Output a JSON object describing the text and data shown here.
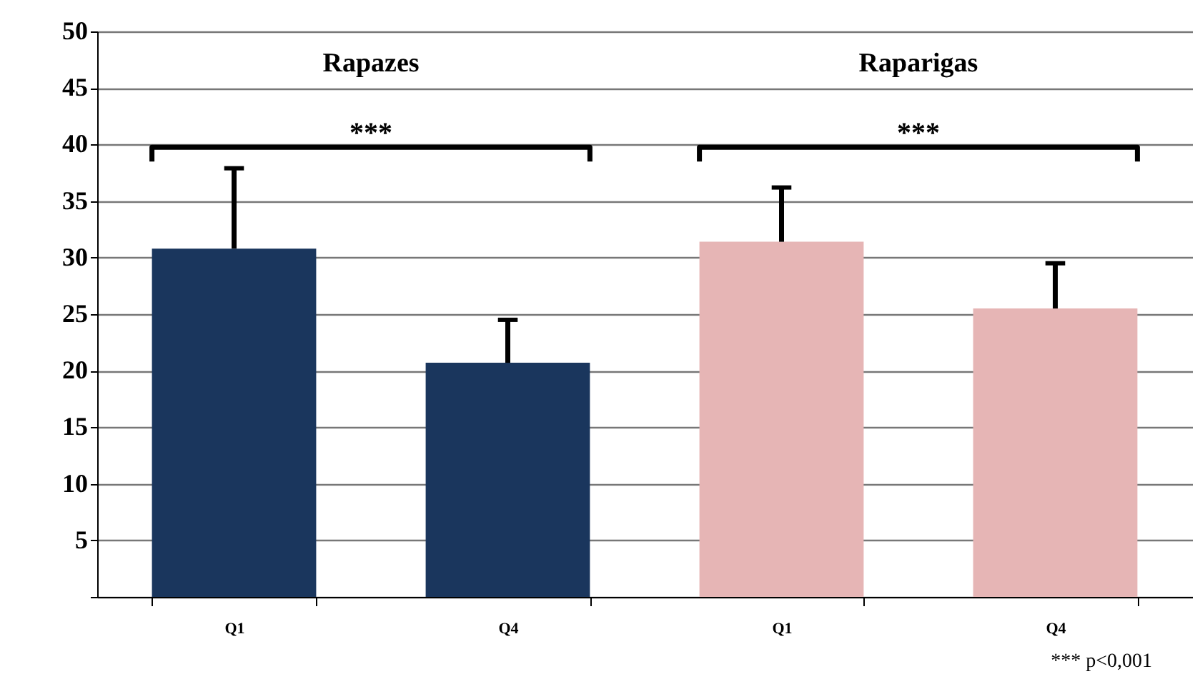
{
  "chart_data": {
    "type": "bar",
    "categories": [
      "Q1",
      "Q4",
      "Q1",
      "Q4"
    ],
    "values": [
      30.8,
      20.7,
      31.4,
      25.5
    ],
    "colors": [
      "#1a365d",
      "#1a365d",
      "#e6b5b5",
      "#e6b5b5"
    ],
    "errors": [
      [
        30.8,
        37.9
      ],
      [
        20.7,
        24.5
      ],
      [
        31.4,
        36.2
      ],
      [
        25.5,
        29.5
      ]
    ],
    "ylim": [
      0,
      50
    ],
    "yticks": [
      {
        "value": 0,
        "label": null
      },
      5,
      10,
      15,
      20,
      25,
      30,
      35,
      40,
      45,
      50
    ],
    "grid": "y",
    "annotations": [
      "Rapazes",
      "Raparigas",
      "***",
      "***",
      "*** p<0,001"
    ]
  }
}
